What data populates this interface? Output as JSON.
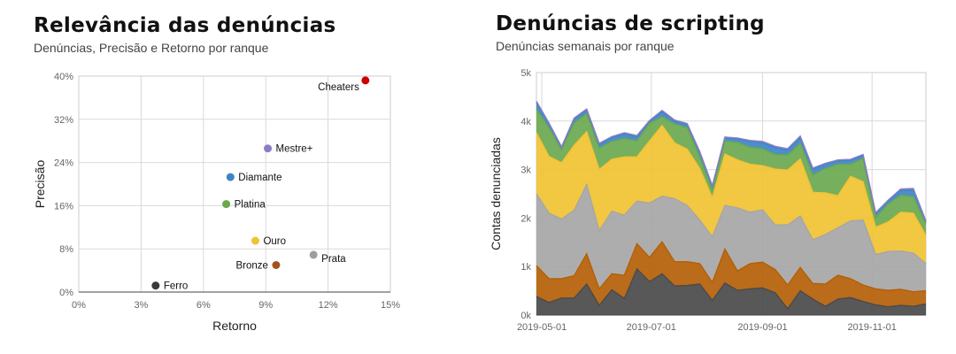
{
  "chart_data": [
    {
      "type": "scatter",
      "title": "Relevância das denúncias",
      "subtitle": "Denúncias, Precisão e Retorno por ranque",
      "xlabel": "Retorno",
      "ylabel": "Precisão",
      "xlim": [
        0,
        15
      ],
      "ylim": [
        0,
        40
      ],
      "xticks": [
        "0%",
        "3%",
        "6%",
        "9%",
        "12%",
        "15%"
      ],
      "yticks": [
        "0%",
        "8%",
        "16%",
        "24%",
        "32%",
        "40%"
      ],
      "grid": true,
      "points": [
        {
          "label": "Ferro",
          "x": 3.7,
          "y": 1.2,
          "color": "#3a3a3a",
          "label_pos": "right"
        },
        {
          "label": "Bronze",
          "x": 9.5,
          "y": 5.0,
          "color": "#a3531a",
          "label_pos": "left"
        },
        {
          "label": "Prata",
          "x": 11.3,
          "y": 6.9,
          "color": "#9e9e9e",
          "label_pos": "right-below"
        },
        {
          "label": "Ouro",
          "x": 8.5,
          "y": 9.5,
          "color": "#f1c232",
          "label_pos": "right"
        },
        {
          "label": "Platina",
          "x": 7.1,
          "y": 16.3,
          "color": "#6aa84f",
          "label_pos": "right"
        },
        {
          "label": "Diamante",
          "x": 7.3,
          "y": 21.3,
          "color": "#3d85c6",
          "label_pos": "right"
        },
        {
          "label": "Mestre+",
          "x": 9.1,
          "y": 26.6,
          "color": "#8e7cc3",
          "label_pos": "right"
        },
        {
          "label": "Cheaters",
          "x": 13.8,
          "y": 39.2,
          "color": "#cc0000",
          "label_pos": "left-below"
        }
      ]
    },
    {
      "type": "area",
      "stacked": true,
      "title": "Denúncias de scripting",
      "subtitle": "Denúncias semanais por ranque",
      "ylabel": "Contas denunciadas",
      "ylim": [
        0,
        5000
      ],
      "yticks": [
        "0k",
        "1k",
        "2k",
        "3k",
        "4k",
        "5k"
      ],
      "xticks": [
        "2019-05-01",
        "2019-07-01",
        "2019-09-01",
        "2019-11-01"
      ],
      "grid": true,
      "x": [
        "2019-04-28",
        "2019-05-05",
        "2019-05-12",
        "2019-05-19",
        "2019-05-26",
        "2019-06-02",
        "2019-06-09",
        "2019-06-16",
        "2019-06-23",
        "2019-06-30",
        "2019-07-07",
        "2019-07-14",
        "2019-07-21",
        "2019-07-28",
        "2019-08-04",
        "2019-08-11",
        "2019-08-18",
        "2019-08-25",
        "2019-09-01",
        "2019-09-08",
        "2019-09-15",
        "2019-09-22",
        "2019-09-29",
        "2019-10-06",
        "2019-10-13",
        "2019-10-20",
        "2019-10-27",
        "2019-11-03",
        "2019-11-10",
        "2019-11-17",
        "2019-11-24",
        "2019-12-01"
      ],
      "series": [
        {
          "color": "#4a4a4a",
          "values": [
            380,
            260,
            350,
            350,
            640,
            200,
            520,
            340,
            950,
            690,
            850,
            600,
            610,
            640,
            300,
            660,
            510,
            540,
            560,
            460,
            130,
            500,
            330,
            180,
            330,
            360,
            280,
            210,
            170,
            200,
            180,
            230
          ]
        },
        {
          "color": "#b45f06",
          "values": [
            640,
            490,
            400,
            460,
            620,
            340,
            330,
            480,
            520,
            500,
            660,
            500,
            490,
            420,
            370,
            700,
            400,
            520,
            530,
            480,
            490,
            480,
            320,
            460,
            490,
            390,
            340,
            330,
            340,
            330,
            300,
            270
          ]
        },
        {
          "color": "#a6a6a6",
          "values": [
            1480,
            1350,
            1230,
            1350,
            1430,
            1200,
            1290,
            1240,
            880,
            1120,
            940,
            1300,
            1160,
            900,
            940,
            900,
            1300,
            1060,
            1080,
            920,
            1240,
            1060,
            900,
            1020,
            980,
            1190,
            1340,
            710,
            800,
            790,
            800,
            560
          ]
        },
        {
          "color": "#f1c232",
          "values": [
            1260,
            1170,
            1160,
            1340,
            1090,
            1260,
            1070,
            1200,
            910,
            1280,
            1460,
            1150,
            1160,
            1060,
            810,
            1060,
            990,
            990,
            910,
            1150,
            1130,
            1180,
            980,
            860,
            660,
            920,
            790,
            560,
            610,
            800,
            820,
            580
          ]
        },
        {
          "color": "#6aa84f",
          "values": [
            480,
            590,
            260,
            460,
            370,
            440,
            370,
            380,
            330,
            360,
            180,
            390,
            440,
            240,
            150,
            270,
            360,
            350,
            350,
            300,
            310,
            320,
            360,
            500,
            650,
            250,
            480,
            200,
            370,
            350,
            340,
            240
          ]
        },
        {
          "color": "#3d85c6",
          "values": [
            140,
            80,
            60,
            80,
            80,
            80,
            80,
            100,
            80,
            40,
            100,
            60,
            70,
            90,
            80,
            60,
            70,
            120,
            120,
            140,
            100,
            120,
            120,
            90,
            70,
            80,
            60,
            80,
            60,
            100,
            140,
            40
          ]
        },
        {
          "color": "#8e7cc3",
          "values": [
            30,
            20,
            10,
            20,
            20,
            20,
            20,
            20,
            30,
            20,
            30,
            20,
            20,
            20,
            20,
            20,
            20,
            20,
            30,
            30,
            30,
            30,
            20,
            20,
            20,
            20,
            20,
            20,
            20,
            30,
            30,
            20
          ]
        }
      ]
    }
  ]
}
